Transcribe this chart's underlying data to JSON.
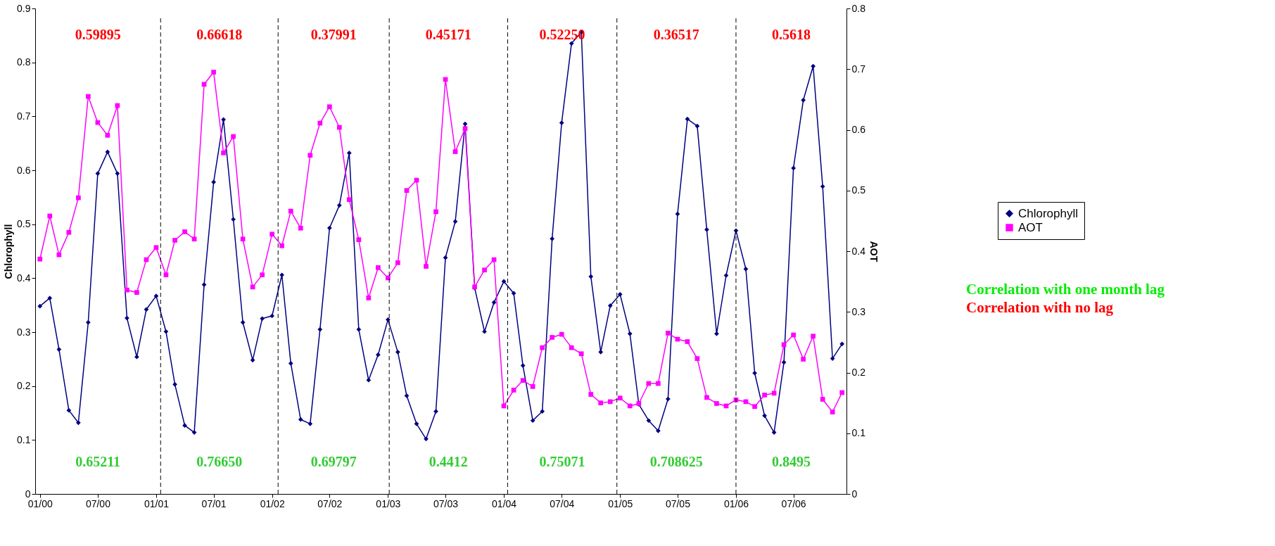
{
  "chart_data": {
    "type": "line",
    "ylabel": "Chlorophyll",
    "y2label": "AOT",
    "x": [
      "2000-01",
      "2000-02",
      "2000-03",
      "2000-04",
      "2000-05",
      "2000-06",
      "2000-07",
      "2000-08",
      "2000-09",
      "2000-10",
      "2000-11",
      "2000-12",
      "2001-01",
      "2001-02",
      "2001-03",
      "2001-04",
      "2001-05",
      "2001-06",
      "2001-07",
      "2001-08",
      "2001-09",
      "2001-10",
      "2001-11",
      "2001-12",
      "2002-01",
      "2002-02",
      "2002-03",
      "2002-04",
      "2002-05",
      "2002-06",
      "2002-07",
      "2002-08",
      "2002-09",
      "2002-10",
      "2002-11",
      "2002-12",
      "2003-01",
      "2003-02",
      "2003-03",
      "2003-04",
      "2003-05",
      "2003-06",
      "2003-07",
      "2003-08",
      "2003-09",
      "2003-10",
      "2003-11",
      "2003-12",
      "2004-01",
      "2004-02",
      "2004-03",
      "2004-04",
      "2004-05",
      "2004-06",
      "2004-07",
      "2004-08",
      "2004-09",
      "2004-10",
      "2004-11",
      "2004-12",
      "2005-01",
      "2005-02",
      "2005-03",
      "2005-04",
      "2005-05",
      "2005-06",
      "2005-07",
      "2005-08",
      "2005-09",
      "2005-10",
      "2005-11",
      "2005-12",
      "2006-01",
      "2006-02",
      "2006-03",
      "2006-04",
      "2006-05",
      "2006-06",
      "2006-07",
      "2006-08",
      "2006-09",
      "2006-10",
      "2006-11",
      "2006-12"
    ],
    "series": [
      {
        "name": "Chlorophyll",
        "color": "#000080",
        "marker": "diamond",
        "values": [
          0.348,
          0.363,
          0.268,
          0.155,
          0.132,
          0.318,
          0.594,
          0.634,
          0.594,
          0.326,
          0.254,
          0.342,
          0.367,
          0.301,
          0.203,
          0.127,
          0.114,
          0.388,
          0.578,
          0.694,
          0.509,
          0.318,
          0.248,
          0.325,
          0.33,
          0.406,
          0.242,
          0.138,
          0.13,
          0.305,
          0.493,
          0.535,
          0.632,
          0.305,
          0.211,
          0.258,
          0.323,
          0.263,
          0.182,
          0.13,
          0.102,
          0.153,
          0.438,
          0.505,
          0.686,
          0.382,
          0.301,
          0.355,
          0.394,
          0.372,
          0.238,
          0.136,
          0.153,
          0.473,
          0.688,
          0.835,
          0.856,
          0.403,
          0.263,
          0.349,
          0.37,
          0.297,
          0.166,
          0.136,
          0.117,
          0.176,
          0.519,
          0.695,
          0.682,
          0.49,
          0.297,
          0.405,
          0.488,
          0.417,
          0.224,
          0.145,
          0.114,
          0.244,
          0.604,
          0.73,
          0.793,
          0.57,
          0.251,
          0.278
        ]
      },
      {
        "name": "AOT",
        "color": "#ff00ff",
        "marker": "square",
        "axis": "y2",
        "values": [
          0.387,
          0.458,
          0.394,
          0.431,
          0.488,
          0.655,
          0.612,
          0.591,
          0.64,
          0.336,
          0.332,
          0.386,
          0.406,
          0.361,
          0.418,
          0.432,
          0.42,
          0.675,
          0.695,
          0.562,
          0.589,
          0.42,
          0.341,
          0.361,
          0.428,
          0.409,
          0.466,
          0.438,
          0.558,
          0.611,
          0.638,
          0.604,
          0.485,
          0.419,
          0.323,
          0.373,
          0.356,
          0.381,
          0.5,
          0.517,
          0.375,
          0.465,
          0.683,
          0.564,
          0.602,
          0.341,
          0.369,
          0.386,
          0.145,
          0.171,
          0.187,
          0.177,
          0.241,
          0.258,
          0.263,
          0.241,
          0.231,
          0.164,
          0.15,
          0.152,
          0.158,
          0.145,
          0.149,
          0.182,
          0.182,
          0.265,
          0.255,
          0.251,
          0.223,
          0.159,
          0.149,
          0.145,
          0.155,
          0.152,
          0.144,
          0.163,
          0.166,
          0.246,
          0.262,
          0.222,
          0.26,
          0.156,
          0.135,
          0.167
        ]
      }
    ],
    "xlim": [
      "1999-12-17",
      "2006-12-15"
    ],
    "xticks": [
      {
        "value": "2000-01",
        "label": "01/00"
      },
      {
        "value": "2000-07",
        "label": "07/00"
      },
      {
        "value": "2001-01",
        "label": "01/01"
      },
      {
        "value": "2001-07",
        "label": "07/01"
      },
      {
        "value": "2002-01",
        "label": "01/02"
      },
      {
        "value": "2002-07",
        "label": "07/02"
      },
      {
        "value": "2003-01",
        "label": "01/03"
      },
      {
        "value": "2003-07",
        "label": "07/03"
      },
      {
        "value": "2004-01",
        "label": "01/04"
      },
      {
        "value": "2004-07",
        "label": "07/04"
      },
      {
        "value": "2005-01",
        "label": "01/05"
      },
      {
        "value": "2005-07",
        "label": "07/05"
      },
      {
        "value": "2006-01",
        "label": "01/06"
      },
      {
        "value": "2006-07",
        "label": "07/06"
      }
    ],
    "ylim": [
      0,
      0.9
    ],
    "yticks": [
      0,
      0.1,
      0.2,
      0.3,
      0.4,
      0.5,
      0.6,
      0.7,
      0.8,
      0.9
    ],
    "y2lim": [
      0,
      0.8
    ],
    "y2ticks": [
      0,
      0.1,
      0.2,
      0.3,
      0.4,
      0.5,
      0.6,
      0.7,
      0.8
    ],
    "ref_lines": [
      {
        "axis": "x",
        "value": "2001-01-15",
        "color": "#000000",
        "line_style": "dashed"
      },
      {
        "axis": "x",
        "value": "2002-01-20",
        "color": "#000000",
        "line_style": "dashed"
      },
      {
        "axis": "x",
        "value": "2003-01-05",
        "color": "#000000",
        "line_style": "dashed"
      },
      {
        "axis": "x",
        "value": "2004-01-13",
        "color": "#000000",
        "line_style": "dashed"
      },
      {
        "axis": "x",
        "value": "2004-12-22",
        "color": "#000000",
        "line_style": "dashed"
      },
      {
        "axis": "x",
        "value": "2006-01-01",
        "color": "#000000",
        "line_style": "dashed"
      }
    ],
    "annotations": [
      "0.59895",
      "0.66618",
      "0.37991",
      "0.45171",
      "0.52250",
      "0.36517",
      "0.5618",
      "0.65211",
      "0.76650",
      "0.69797",
      "0.4412",
      "0.75071",
      "0.708625",
      "0.8495",
      "Correlation with one month lag",
      "Correlation with no lag"
    ],
    "legend": "right",
    "grid": false,
    "line_style": "solid"
  }
}
